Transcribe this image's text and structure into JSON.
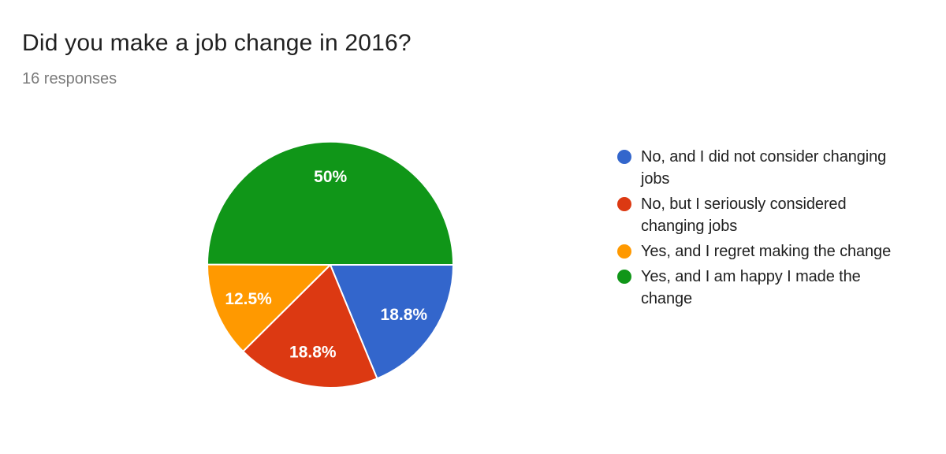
{
  "header": {
    "title": "Did you make a job change in 2016?",
    "subtitle": "16 responses"
  },
  "chart_data": {
    "type": "pie",
    "title": "Did you make a job change in 2016?",
    "subtitle": "16 responses",
    "total_responses": 16,
    "legend_position": "right",
    "start_angle_deg": 0,
    "direction": "clockwise",
    "label_color": "#ffffff",
    "slices": [
      {
        "label": "No, and I did not consider changing jobs",
        "value_percent": 18.8,
        "display": "18.8%",
        "color": "#3366CC"
      },
      {
        "label": "No, but I seriously considered changing jobs",
        "value_percent": 18.8,
        "display": "18.8%",
        "color": "#DC3912"
      },
      {
        "label": "Yes, and I regret making the change",
        "value_percent": 12.5,
        "display": "12.5%",
        "color": "#FF9900"
      },
      {
        "label": "Yes, and I am happy I made the change",
        "value_percent": 50,
        "display": "50%",
        "color": "#109618"
      }
    ]
  }
}
